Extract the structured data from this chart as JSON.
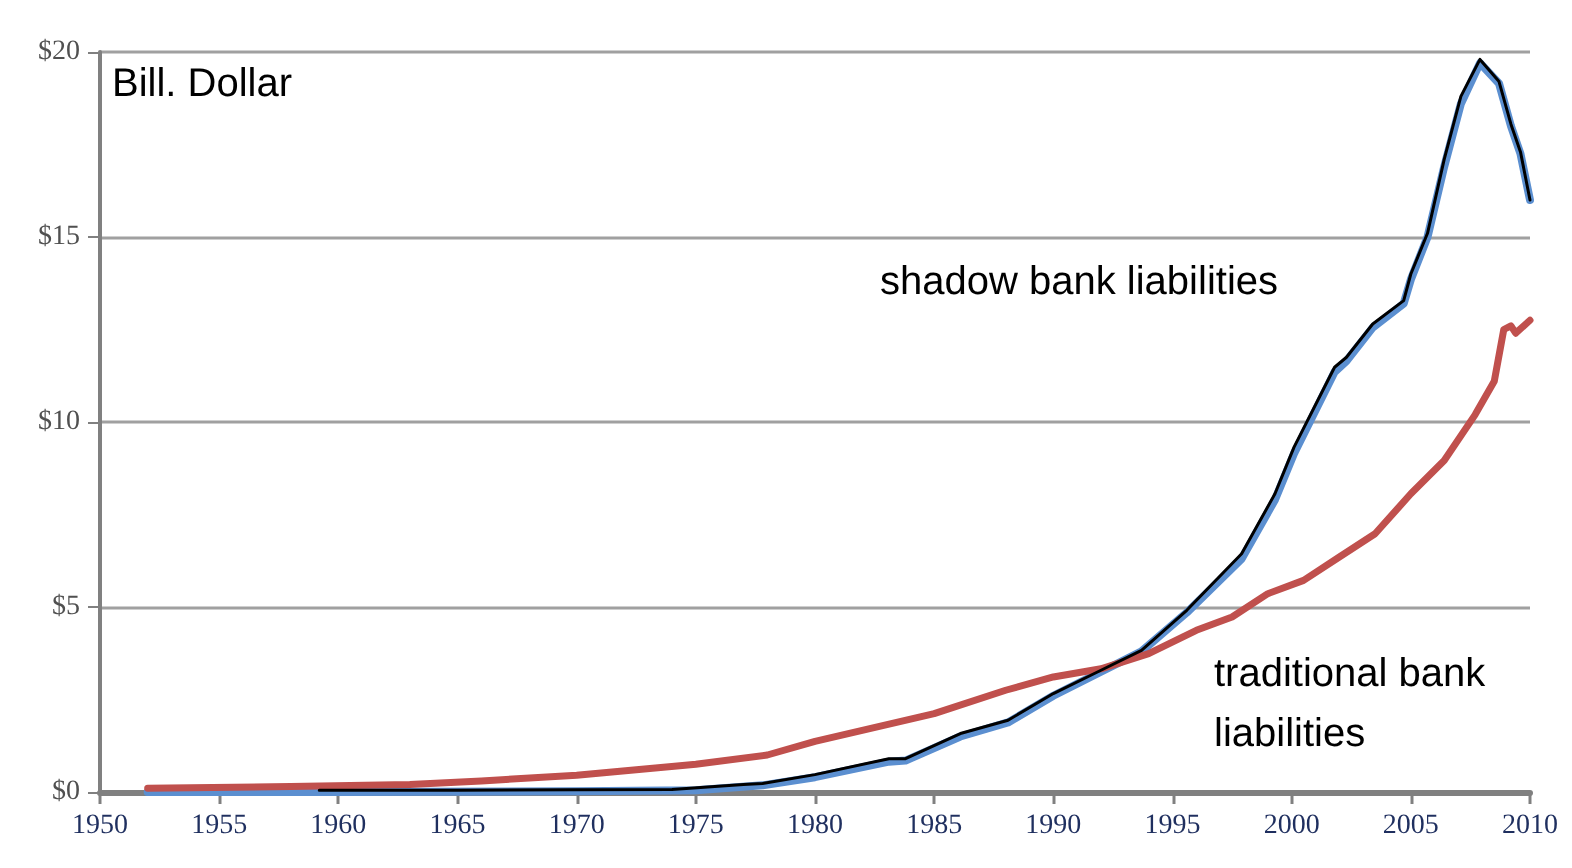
{
  "chart_data": {
    "type": "line",
    "ylabel": "Bill. Dollar",
    "xlim": [
      1950,
      2010
    ],
    "xticks": [
      1950,
      1955,
      1960,
      1965,
      1970,
      1975,
      1980,
      1985,
      1990,
      1995,
      2000,
      2005,
      2010
    ],
    "ylim": [
      0,
      20
    ],
    "yticks": [
      {
        "value": 0,
        "label": "$0"
      },
      {
        "value": 5,
        "label": "$5"
      },
      {
        "value": 10,
        "label": "$10"
      },
      {
        "value": 15,
        "label": "$15"
      },
      {
        "value": 20,
        "label": "$20"
      }
    ],
    "grid": "y",
    "legend": false,
    "marker": "none",
    "line_style": "solid",
    "series": [
      {
        "name": "shadow bank liabilities",
        "color": "#5b8fd0",
        "x": [
          1952,
          1960,
          1970,
          1975,
          1977.8,
          1980,
          1983.1,
          1983.8,
          1986.1,
          1988.1,
          1990,
          1992,
          1993.7,
          1995.6,
          1997.9,
          1999.3,
          2000.1,
          2001.8,
          2002.3,
          2003.4,
          2004.7,
          2005,
          2005.7,
          2006.4,
          2007.1,
          2007.9,
          2008.7,
          2009.2,
          2009.6,
          2010
        ],
        "values": [
          0,
          0,
          0.02,
          0.05,
          0.18,
          0.4,
          0.82,
          0.85,
          1.5,
          1.88,
          2.6,
          3.25,
          3.8,
          4.85,
          6.3,
          7.9,
          9.15,
          11.35,
          11.65,
          12.55,
          13.2,
          13.85,
          15,
          16.9,
          18.6,
          19.7,
          19.15,
          18,
          17.25,
          16
        ]
      },
      {
        "name": "traditional bank liabilities",
        "color": "#c0504d",
        "x": [
          1952,
          1958,
          1963,
          1966,
          1970,
          1975,
          1978,
          1980,
          1985,
          1988,
          1990,
          1992,
          1994,
          1996,
          1997.5,
          1999,
          2000.5,
          2002,
          2003.5,
          2005,
          2006.4,
          2007.7,
          2008.5,
          2008.9,
          2009.2,
          2009.4,
          2010
        ],
        "values": [
          0.1,
          0.15,
          0.2,
          0.3,
          0.45,
          0.75,
          1,
          1.37,
          2.12,
          2.75,
          3.11,
          3.33,
          3.74,
          4.37,
          4.73,
          5.36,
          5.72,
          6.35,
          6.98,
          8.06,
          8.96,
          10.2,
          11.1,
          12.5,
          12.6,
          12.4,
          12.75
        ]
      },
      {
        "color": "#000000",
        "x": [
          1959.2,
          1965,
          1970,
          1974,
          1977,
          1977.8,
          1980,
          1983.1,
          1983.8,
          1986.1,
          1988.1,
          1990,
          1992,
          1993.7,
          1995.6,
          1997.9,
          1999.3,
          2000.1,
          2001.8,
          2002.3,
          2003.4,
          2004.7,
          2005,
          2005.7,
          2006.4,
          2007.1,
          2007.9,
          2008.7,
          2009.2,
          2009.6,
          2010
        ],
        "values": [
          0.05,
          0.05,
          0.06,
          0.07,
          0.2,
          0.23,
          0.47,
          0.9,
          0.9,
          1.58,
          1.94,
          2.66,
          3.29,
          3.83,
          4.91,
          6.44,
          8.06,
          9.32,
          11.48,
          11.75,
          12.65,
          13.28,
          14,
          15.1,
          17.1,
          18.8,
          19.8,
          19.2,
          18.05,
          17.3,
          16
        ]
      }
    ]
  }
}
